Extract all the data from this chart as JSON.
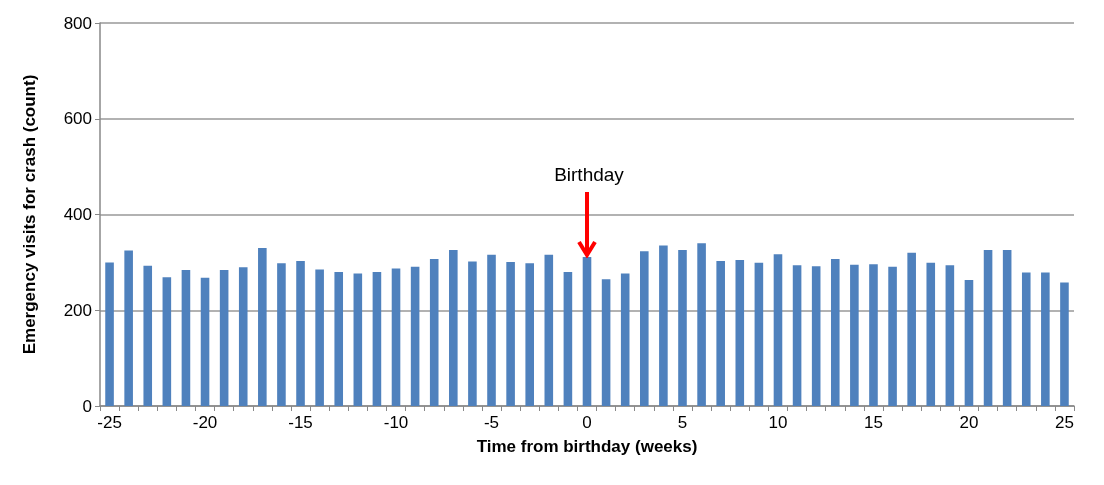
{
  "chart_data": {
    "type": "bar",
    "xlabel": "Time from birthday (weeks)",
    "ylabel": "Emergency visits for crash (count)",
    "categories": [
      "-25",
      null,
      null,
      null,
      null,
      "-20",
      null,
      null,
      null,
      null,
      "-15",
      null,
      null,
      null,
      null,
      "-10",
      null,
      null,
      null,
      null,
      "-5",
      null,
      null,
      null,
      null,
      "0",
      null,
      null,
      null,
      null,
      "5",
      null,
      null,
      null,
      null,
      "10",
      null,
      null,
      null,
      null,
      "15",
      null,
      null,
      null,
      null,
      "20",
      null,
      null,
      null,
      null,
      "25"
    ],
    "series": [
      {
        "color": "#4f81bd",
        "values": [
          300,
          325,
          293,
          269,
          284,
          268,
          284,
          290,
          330,
          298,
          303,
          285,
          280,
          277,
          280,
          287,
          291,
          307,
          326,
          302,
          316,
          301,
          298,
          316,
          280,
          311,
          265,
          277,
          323,
          335,
          326,
          340,
          303,
          305,
          299,
          317,
          294,
          292,
          307,
          295,
          296,
          291,
          320,
          299,
          294,
          263,
          326,
          326,
          279,
          279,
          258
        ]
      }
    ],
    "ylim": [
      0,
      800
    ],
    "yticks": [
      0,
      200,
      400,
      600,
      800
    ],
    "grid": "y",
    "annotations": [
      {
        "text": "Birthday",
        "x": "0",
        "y": 311
      }
    ]
  }
}
